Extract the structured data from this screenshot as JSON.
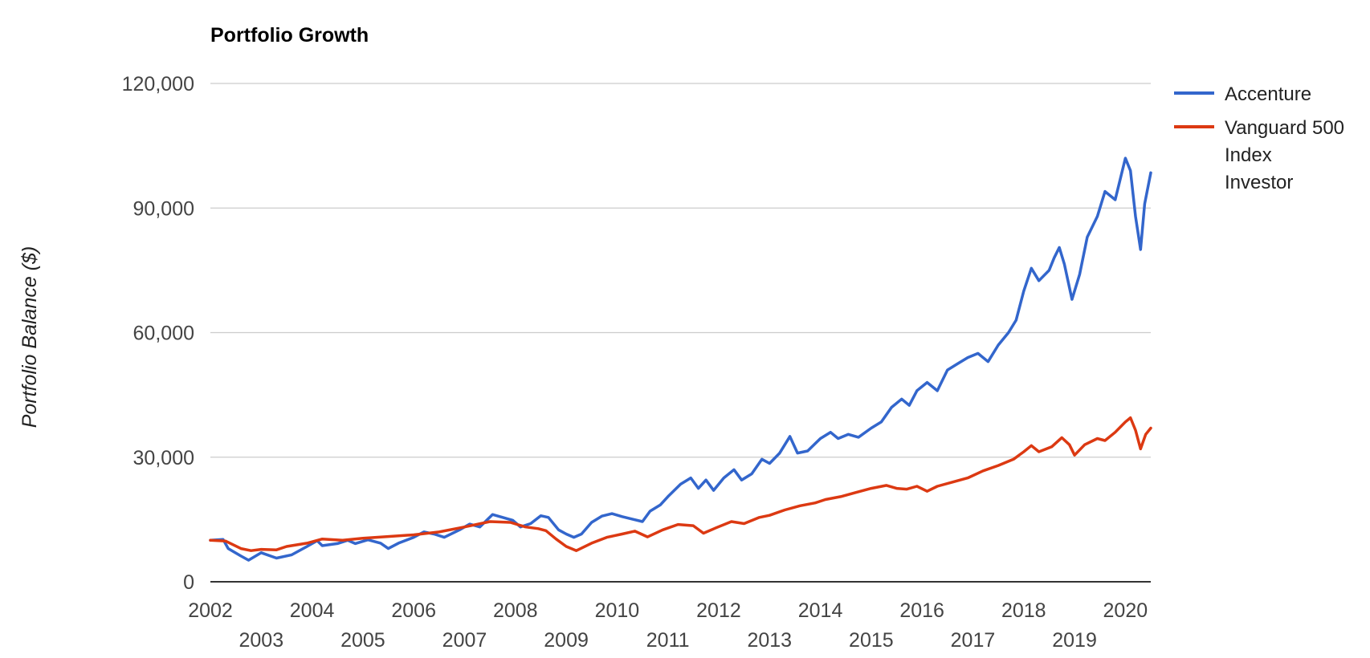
{
  "chart_data": {
    "type": "line",
    "title": "Portfolio Growth",
    "xlabel": "",
    "ylabel": "Portfolio Balance ($)",
    "ylim": [
      0,
      120000
    ],
    "yticks": [
      0,
      30000,
      60000,
      90000,
      120000
    ],
    "ytick_labels": [
      "0",
      "30,000",
      "60,000",
      "90,000",
      "120,000"
    ],
    "xlim": [
      2002.0,
      2020.5
    ],
    "xticks_row1": [
      {
        "x": 2002,
        "label": "2002"
      },
      {
        "x": 2004,
        "label": "2004"
      },
      {
        "x": 2006,
        "label": "2006"
      },
      {
        "x": 2008,
        "label": "2008"
      },
      {
        "x": 2010,
        "label": "2010"
      },
      {
        "x": 2012,
        "label": "2012"
      },
      {
        "x": 2014,
        "label": "2014"
      },
      {
        "x": 2016,
        "label": "2016"
      },
      {
        "x": 2018,
        "label": "2018"
      },
      {
        "x": 2020,
        "label": "2020"
      }
    ],
    "xticks_row2": [
      {
        "x": 2003,
        "label": "2003"
      },
      {
        "x": 2005,
        "label": "2005"
      },
      {
        "x": 2007,
        "label": "2007"
      },
      {
        "x": 2009,
        "label": "2009"
      },
      {
        "x": 2011,
        "label": "2011"
      },
      {
        "x": 2013,
        "label": "2013"
      },
      {
        "x": 2015,
        "label": "2015"
      },
      {
        "x": 2017,
        "label": "2017"
      },
      {
        "x": 2019,
        "label": "2019"
      }
    ],
    "grid": true,
    "legend_position": "right",
    "series": [
      {
        "name": "Accenture",
        "color": "#3366cc",
        "points": [
          [
            2002.0,
            10000
          ],
          [
            2002.25,
            10200
          ],
          [
            2002.35,
            8000
          ],
          [
            2002.6,
            6200
          ],
          [
            2002.75,
            5200
          ],
          [
            2003.0,
            7000
          ],
          [
            2003.3,
            5700
          ],
          [
            2003.6,
            6500
          ],
          [
            2003.9,
            8500
          ],
          [
            2004.1,
            9900
          ],
          [
            2004.2,
            8700
          ],
          [
            2004.5,
            9200
          ],
          [
            2004.7,
            10000
          ],
          [
            2004.85,
            9200
          ],
          [
            2005.1,
            10100
          ],
          [
            2005.35,
            9300
          ],
          [
            2005.5,
            8000
          ],
          [
            2005.7,
            9300
          ],
          [
            2006.0,
            10700
          ],
          [
            2006.2,
            12000
          ],
          [
            2006.4,
            11500
          ],
          [
            2006.6,
            10700
          ],
          [
            2006.9,
            12500
          ],
          [
            2007.1,
            13900
          ],
          [
            2007.3,
            13200
          ],
          [
            2007.55,
            16200
          ],
          [
            2007.75,
            15500
          ],
          [
            2007.95,
            14800
          ],
          [
            2008.1,
            13200
          ],
          [
            2008.3,
            14000
          ],
          [
            2008.5,
            15900
          ],
          [
            2008.65,
            15500
          ],
          [
            2008.85,
            12500
          ],
          [
            2009.0,
            11500
          ],
          [
            2009.15,
            10700
          ],
          [
            2009.3,
            11500
          ],
          [
            2009.5,
            14300
          ],
          [
            2009.7,
            15800
          ],
          [
            2009.9,
            16400
          ],
          [
            2010.1,
            15700
          ],
          [
            2010.3,
            15100
          ],
          [
            2010.5,
            14500
          ],
          [
            2010.65,
            17000
          ],
          [
            2010.85,
            18500
          ],
          [
            2011.0,
            20500
          ],
          [
            2011.25,
            23500
          ],
          [
            2011.45,
            25000
          ],
          [
            2011.6,
            22500
          ],
          [
            2011.75,
            24500
          ],
          [
            2011.9,
            22000
          ],
          [
            2012.1,
            25000
          ],
          [
            2012.3,
            27000
          ],
          [
            2012.45,
            24500
          ],
          [
            2012.65,
            26000
          ],
          [
            2012.85,
            29500
          ],
          [
            2013.0,
            28500
          ],
          [
            2013.2,
            31000
          ],
          [
            2013.4,
            35000
          ],
          [
            2013.55,
            31000
          ],
          [
            2013.75,
            31500
          ],
          [
            2014.0,
            34500
          ],
          [
            2014.2,
            36000
          ],
          [
            2014.35,
            34500
          ],
          [
            2014.55,
            35500
          ],
          [
            2014.75,
            34800
          ],
          [
            2015.0,
            37000
          ],
          [
            2015.2,
            38500
          ],
          [
            2015.4,
            42000
          ],
          [
            2015.6,
            44000
          ],
          [
            2015.75,
            42500
          ],
          [
            2015.9,
            46000
          ],
          [
            2016.1,
            48000
          ],
          [
            2016.3,
            46000
          ],
          [
            2016.5,
            51000
          ],
          [
            2016.7,
            52500
          ],
          [
            2016.9,
            54000
          ],
          [
            2017.1,
            55000
          ],
          [
            2017.3,
            53000
          ],
          [
            2017.5,
            57000
          ],
          [
            2017.7,
            60000
          ],
          [
            2017.85,
            63000
          ],
          [
            2018.0,
            70000
          ],
          [
            2018.15,
            75500
          ],
          [
            2018.3,
            72500
          ],
          [
            2018.5,
            75000
          ],
          [
            2018.6,
            78000
          ],
          [
            2018.7,
            80500
          ],
          [
            2018.8,
            76500
          ],
          [
            2018.95,
            68000
          ],
          [
            2019.1,
            74000
          ],
          [
            2019.25,
            83000
          ],
          [
            2019.45,
            88000
          ],
          [
            2019.6,
            94000
          ],
          [
            2019.8,
            92000
          ],
          [
            2020.0,
            102000
          ],
          [
            2020.1,
            99000
          ],
          [
            2020.2,
            88000
          ],
          [
            2020.3,
            80000
          ],
          [
            2020.38,
            91000
          ],
          [
            2020.5,
            98500
          ]
        ]
      },
      {
        "name": "Vanguard 500 Index Investor",
        "color": "#dc3912",
        "points": [
          [
            2002.0,
            10000
          ],
          [
            2002.3,
            9800
          ],
          [
            2002.6,
            8000
          ],
          [
            2002.8,
            7500
          ],
          [
            2003.0,
            7800
          ],
          [
            2003.3,
            7700
          ],
          [
            2003.5,
            8500
          ],
          [
            2003.9,
            9300
          ],
          [
            2004.2,
            10300
          ],
          [
            2004.6,
            10000
          ],
          [
            2005.0,
            10500
          ],
          [
            2005.5,
            10900
          ],
          [
            2006.0,
            11300
          ],
          [
            2006.5,
            12000
          ],
          [
            2007.0,
            13200
          ],
          [
            2007.5,
            14500
          ],
          [
            2007.9,
            14300
          ],
          [
            2008.2,
            13200
          ],
          [
            2008.45,
            12800
          ],
          [
            2008.6,
            12300
          ],
          [
            2008.8,
            10300
          ],
          [
            2009.0,
            8500
          ],
          [
            2009.2,
            7500
          ],
          [
            2009.5,
            9300
          ],
          [
            2009.8,
            10700
          ],
          [
            2010.1,
            11500
          ],
          [
            2010.35,
            12200
          ],
          [
            2010.6,
            10800
          ],
          [
            2010.9,
            12500
          ],
          [
            2011.2,
            13800
          ],
          [
            2011.5,
            13500
          ],
          [
            2011.7,
            11700
          ],
          [
            2011.95,
            13000
          ],
          [
            2012.25,
            14500
          ],
          [
            2012.5,
            14000
          ],
          [
            2012.8,
            15500
          ],
          [
            2013.0,
            16000
          ],
          [
            2013.3,
            17300
          ],
          [
            2013.6,
            18300
          ],
          [
            2013.9,
            19000
          ],
          [
            2014.1,
            19800
          ],
          [
            2014.4,
            20500
          ],
          [
            2014.7,
            21500
          ],
          [
            2015.0,
            22500
          ],
          [
            2015.3,
            23200
          ],
          [
            2015.5,
            22500
          ],
          [
            2015.7,
            22300
          ],
          [
            2015.9,
            23000
          ],
          [
            2016.1,
            21800
          ],
          [
            2016.3,
            23000
          ],
          [
            2016.6,
            24000
          ],
          [
            2016.9,
            25000
          ],
          [
            2017.2,
            26700
          ],
          [
            2017.5,
            28000
          ],
          [
            2017.8,
            29500
          ],
          [
            2018.0,
            31300
          ],
          [
            2018.15,
            32800
          ],
          [
            2018.3,
            31300
          ],
          [
            2018.55,
            32500
          ],
          [
            2018.75,
            34700
          ],
          [
            2018.9,
            33000
          ],
          [
            2019.0,
            30500
          ],
          [
            2019.2,
            33000
          ],
          [
            2019.45,
            34500
          ],
          [
            2019.6,
            34000
          ],
          [
            2019.8,
            36000
          ],
          [
            2020.0,
            38500
          ],
          [
            2020.1,
            39500
          ],
          [
            2020.2,
            36500
          ],
          [
            2020.3,
            32000
          ],
          [
            2020.4,
            35500
          ],
          [
            2020.5,
            37000
          ]
        ]
      }
    ]
  }
}
